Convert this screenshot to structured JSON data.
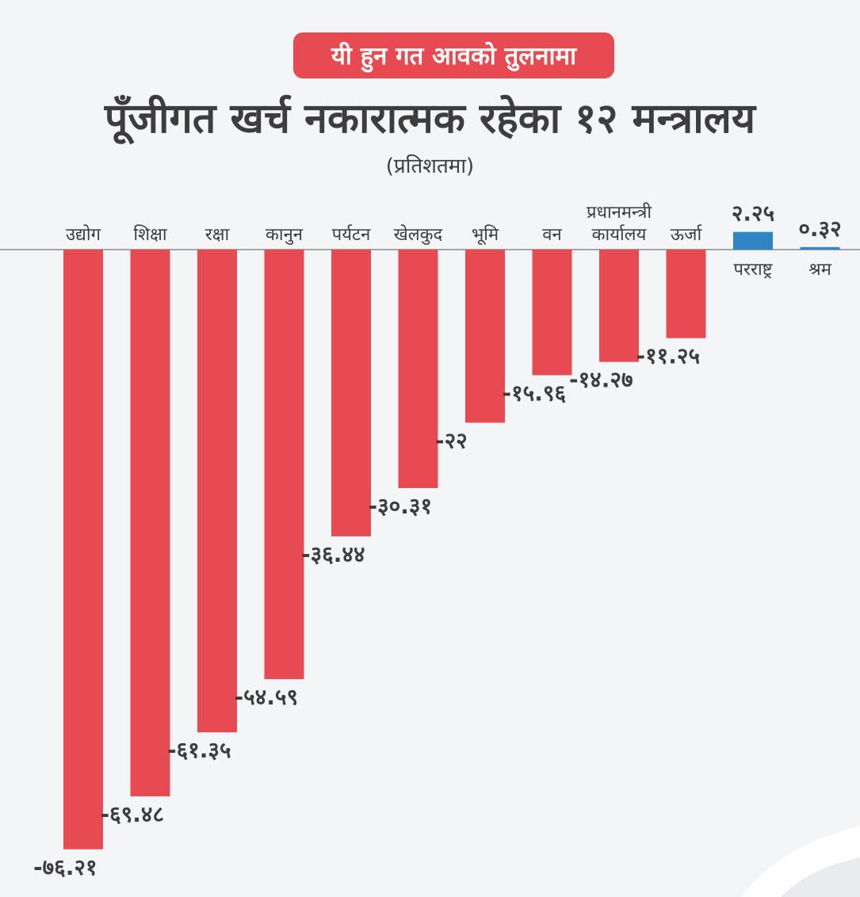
{
  "header": {
    "pill_text": "यी हुन गत आवको तुलनामा",
    "title": "पूँजीगत खर्च नकारात्मक रहेका १२ मन्त्रालय",
    "subtitle": "(प्रतिशतमा)"
  },
  "colors": {
    "negative": "#e84a52",
    "positive": "#2f86c4",
    "text": "#3d3d3f",
    "axis": "#8a8a8a",
    "background": "#f4f5f7"
  },
  "chart_data": {
    "type": "bar",
    "title": "पूँजीगत खर्च नकारात्मक रहेका १२ मन्त्रालय",
    "subtitle": "(प्रतिशतमा)",
    "ylabel": "",
    "xlabel": "",
    "ylim": [
      -80,
      5
    ],
    "grid": false,
    "legend": "none",
    "categories": [
      "उद्योग",
      "शिक्षा",
      "रक्षा",
      "कानुन",
      "पर्यटन",
      "खेलकुद",
      "भूमि",
      "वन",
      "प्रधानमन्त्री कार्यालय",
      "ऊर्जा",
      "परराष्ट्र",
      "श्रम"
    ],
    "category_lines": [
      [
        "उद्योग"
      ],
      [
        "शिक्षा"
      ],
      [
        "रक्षा"
      ],
      [
        "कानुन"
      ],
      [
        "पर्यटन"
      ],
      [
        "खेलकुद"
      ],
      [
        "भूमि"
      ],
      [
        "वन"
      ],
      [
        "प्रधानमन्त्री",
        "कार्यालय"
      ],
      [
        "ऊर्जा"
      ],
      [
        "परराष्ट्र"
      ],
      [
        "श्रम"
      ]
    ],
    "values": [
      -76.21,
      -69.48,
      -61.35,
      -54.59,
      -36.44,
      -30.31,
      -22,
      -15.96,
      -14.27,
      -11.25,
      2.25,
      0.32
    ],
    "value_labels": [
      "-७६.२१",
      "-६९.४८",
      "-६१.३५",
      "-५४.५९",
      "-३६.४४",
      "-३०.३१",
      "-२२",
      "-१५.९६",
      "-१४.२७",
      "-११.२५",
      "२.२५",
      "०.३२"
    ]
  }
}
